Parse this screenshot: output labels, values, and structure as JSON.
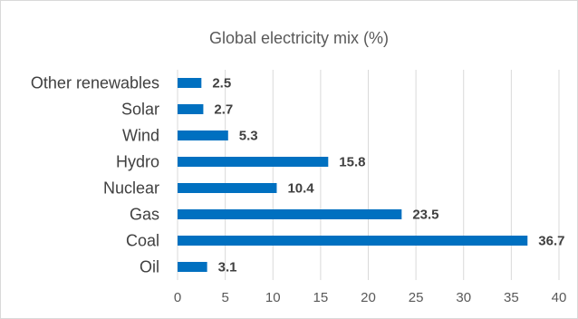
{
  "chart_data": {
    "type": "bar",
    "orientation": "horizontal",
    "title": "Global electricity mix (%)",
    "categories": [
      "Other renewables",
      "Solar",
      "Wind",
      "Hydro",
      "Nuclear",
      "Gas",
      "Coal",
      "Oil"
    ],
    "values": [
      2.5,
      2.7,
      5.3,
      15.8,
      10.4,
      23.5,
      36.7,
      3.1
    ],
    "xlabel": "",
    "ylabel": "",
    "xlim": [
      0,
      40
    ],
    "xticks": [
      "0",
      "5",
      "10",
      "15",
      "20",
      "25",
      "30",
      "35",
      "40"
    ],
    "grid": true,
    "legend": "none",
    "bar_color": "#0070c0",
    "data_labels": true
  }
}
